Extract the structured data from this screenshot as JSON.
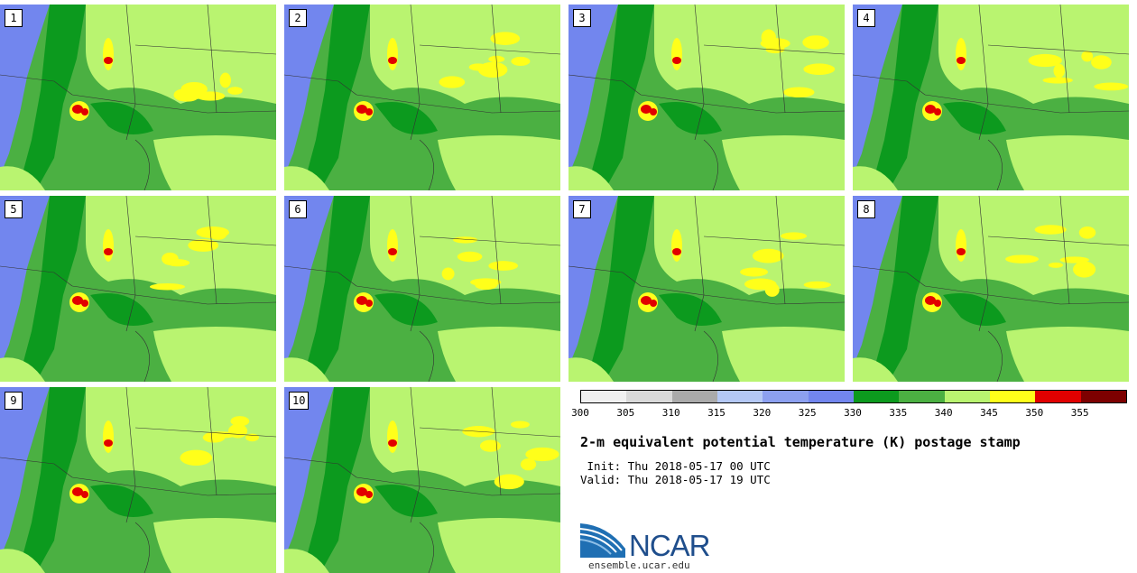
{
  "stamps": [
    {
      "label": "1"
    },
    {
      "label": "2"
    },
    {
      "label": "3"
    },
    {
      "label": "4"
    },
    {
      "label": "5"
    },
    {
      "label": "6"
    },
    {
      "label": "7"
    },
    {
      "label": "8"
    },
    {
      "label": "9"
    },
    {
      "label": "10"
    }
  ],
  "colorbar": {
    "ticks": [
      "300",
      "305",
      "310",
      "315",
      "320",
      "325",
      "330",
      "335",
      "340",
      "345",
      "350",
      "355"
    ],
    "colors": [
      "#f0f0f0",
      "#d9d9d9",
      "#aaaaaa",
      "#b4c8f5",
      "#8ca0f0",
      "#7286ee",
      "#0c9a1e",
      "#4bb042",
      "#b9f470",
      "#ffff1a",
      "#e10000",
      "#7d0000"
    ]
  },
  "title": "2-m equivalent potential temperature (K) postage stamp",
  "init": " Init: Thu 2018-05-17 00 UTC",
  "valid": "Valid: Thu 2018-05-17 19 UTC",
  "logo": {
    "text": "NCAR",
    "url": "ensemble.ucar.edu"
  },
  "map_colors": {
    "cold": "#7286ee",
    "green_dark": "#0c9a1e",
    "green_mid": "#4bb042",
    "green_light": "#b9f470",
    "yellow": "#ffff1a",
    "red": "#e10000"
  }
}
